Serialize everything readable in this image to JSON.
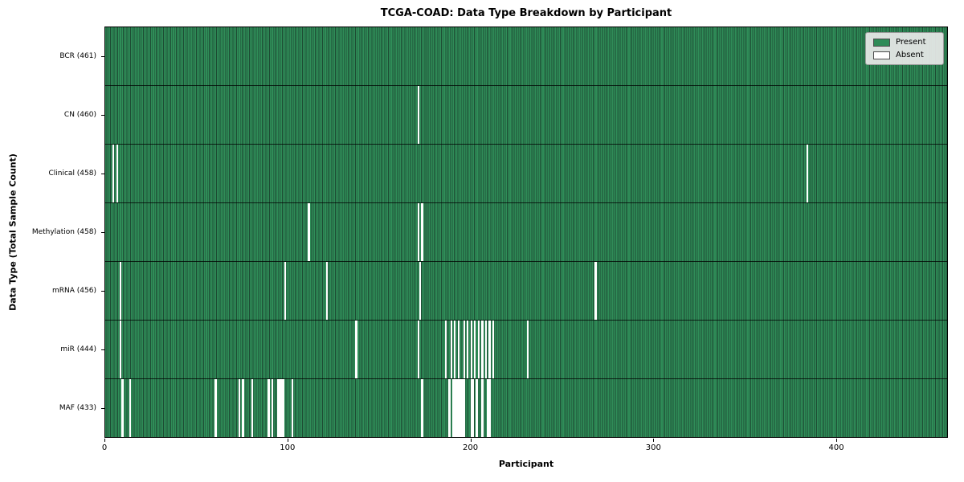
{
  "chart_data": {
    "type": "heatmap",
    "title": "TCGA-COAD: Data Type Breakdown by Participant",
    "xlabel": "Participant",
    "ylabel": "Data Type (Total Sample Count)",
    "n_participants": 461,
    "x_ticks": [
      0,
      100,
      200,
      300,
      400
    ],
    "legend": [
      {
        "label": "Present",
        "color": "#2e8b57"
      },
      {
        "label": "Absent",
        "color": "#ffffff"
      }
    ],
    "legend_position": "upper right",
    "grid": false,
    "colors": {
      "present": "#2f8d58",
      "present_edge": "#1d4b33",
      "absent": "#ffffff",
      "row_separator": "#000000"
    },
    "rows": [
      {
        "label": "BCR (461)",
        "data_type": "BCR",
        "total": 461,
        "absent": []
      },
      {
        "label": "CN (460)",
        "data_type": "CN",
        "total": 460,
        "absent": [
          171
        ]
      },
      {
        "label": "Clinical (458)",
        "data_type": "Clinical",
        "total": 458,
        "absent": [
          4,
          6,
          384
        ]
      },
      {
        "label": "Methylation (458)",
        "data_type": "Methylation",
        "total": 458,
        "absent": [
          111,
          171,
          173
        ]
      },
      {
        "label": "mRNA (456)",
        "data_type": "mRNA",
        "total": 456,
        "absent": [
          8,
          98,
          121,
          172,
          268
        ]
      },
      {
        "label": "miR (444)",
        "data_type": "miR",
        "total": 444,
        "absent": [
          8,
          137,
          171,
          186,
          189,
          191,
          193,
          196,
          198,
          200,
          202,
          204,
          206,
          208,
          210,
          212,
          231
        ]
      },
      {
        "label": "MAF (433)",
        "data_type": "MAF",
        "total": 433,
        "absent": [
          9,
          13,
          60,
          73,
          75,
          80,
          89,
          91,
          94,
          95,
          96,
          97,
          102,
          173,
          188,
          190,
          191,
          192,
          193,
          194,
          195,
          196,
          200,
          201,
          203,
          206,
          209,
          210
        ]
      }
    ]
  }
}
